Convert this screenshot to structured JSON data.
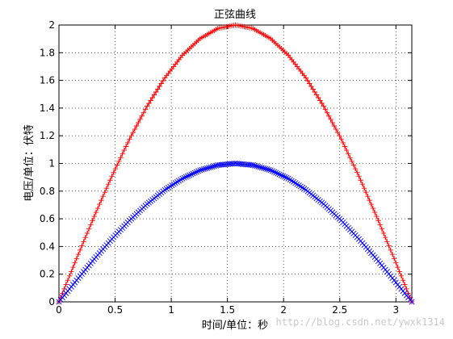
{
  "chart_data": {
    "type": "line",
    "title": "正弦曲线",
    "xlabel": "时间/单位：秒",
    "ylabel": "电压/单位：伏特",
    "xlim": [
      0,
      3.14159
    ],
    "ylim": [
      0,
      2
    ],
    "x_ticks": [
      "0",
      "0.5",
      "1",
      "1.5",
      "2",
      "2.5",
      "3"
    ],
    "y_ticks": [
      "0",
      "0.2",
      "0.4",
      "0.6",
      "0.8",
      "1",
      "1.2",
      "1.4",
      "1.6",
      "1.8",
      "2"
    ],
    "grid": true,
    "series": [
      {
        "color": "#ff0000",
        "marker": "+",
        "x": [
          0,
          0.1571,
          0.3142,
          0.4712,
          0.6283,
          0.7854,
          0.9425,
          1.0996,
          1.2566,
          1.4137,
          1.5708,
          1.7279,
          1.885,
          2.042,
          2.1991,
          2.3562,
          2.5133,
          2.6704,
          2.8274,
          2.9845,
          3.1416
        ],
        "values": [
          0,
          0.313,
          0.618,
          0.908,
          1.176,
          1.414,
          1.618,
          1.782,
          1.902,
          1.975,
          2.0,
          1.975,
          1.902,
          1.782,
          1.618,
          1.414,
          1.176,
          0.908,
          0.618,
          0.313,
          0
        ]
      },
      {
        "color": "#0000ff",
        "marker": "x",
        "x": [
          0,
          0.1571,
          0.3142,
          0.4712,
          0.6283,
          0.7854,
          0.9425,
          1.0996,
          1.2566,
          1.4137,
          1.5708,
          1.7279,
          1.885,
          2.042,
          2.1991,
          2.3562,
          2.5133,
          2.6704,
          2.8274,
          2.9845,
          3.1416
        ],
        "values": [
          0,
          0.156,
          0.309,
          0.454,
          0.588,
          0.707,
          0.809,
          0.891,
          0.951,
          0.988,
          1.0,
          0.988,
          0.951,
          0.891,
          0.809,
          0.707,
          0.588,
          0.454,
          0.309,
          0.156,
          0
        ]
      }
    ]
  },
  "watermark": "http://blog.csdn.net/ywxk1314"
}
